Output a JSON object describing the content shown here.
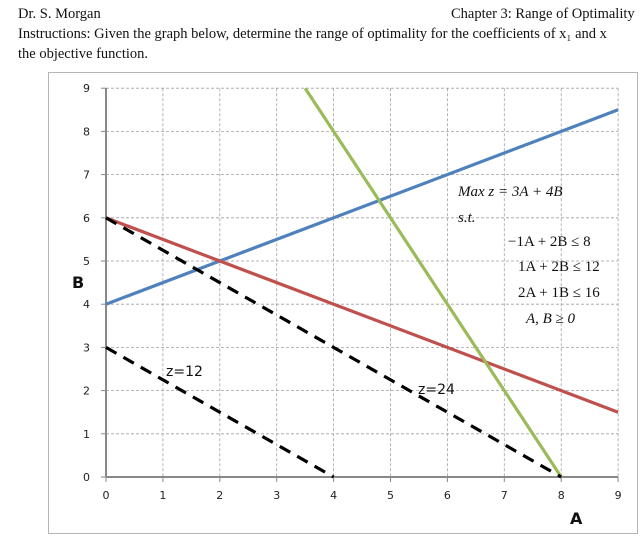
{
  "header": {
    "author": "Dr. S. Morgan",
    "chapter": "Chapter 3: Range of Optimality",
    "instructions_line1": "Instructions: Given the graph below, determine the range of optimality for the coefficients of x₁ and x",
    "instructions_line2": "the objective function."
  },
  "model": {
    "objective": "Max z = 3A + 4B",
    "st": "s.t.",
    "constraints": [
      "−1A + 2B ≤ 8",
      "1A + 2B ≤ 12",
      "2A + 1B ≤ 16",
      "A, B ≥ 0"
    ]
  },
  "labels": {
    "z12": "z=12",
    "z24": "z=24",
    "xaxis": "A",
    "yaxis": "B"
  },
  "chart_data": {
    "type": "line",
    "title": "",
    "xlabel": "A",
    "ylabel": "B",
    "xlim": [
      0,
      9
    ],
    "ylim": [
      0,
      9
    ],
    "xticks": [
      0,
      1,
      2,
      3,
      4,
      5,
      6,
      7,
      8,
      9
    ],
    "yticks": [
      0,
      1,
      2,
      3,
      4,
      5,
      6,
      7,
      8,
      9
    ],
    "grid": true,
    "series": [
      {
        "name": "-1A + 2B = 8",
        "color": "#4F81BD",
        "style": "solid",
        "points": [
          [
            0,
            4
          ],
          [
            9,
            8.5
          ]
        ]
      },
      {
        "name": "1A + 2B = 12",
        "color": "#C0504D",
        "style": "solid",
        "points": [
          [
            0,
            6
          ],
          [
            9,
            1.5
          ]
        ]
      },
      {
        "name": "2A + 1B = 16",
        "color": "#9BBB59",
        "style": "solid",
        "points": [
          [
            3.5,
            9
          ],
          [
            8,
            0
          ]
        ]
      },
      {
        "name": "z=12",
        "color": "#000000",
        "style": "dashed",
        "points": [
          [
            0,
            3
          ],
          [
            4,
            0
          ]
        ]
      },
      {
        "name": "z=24",
        "color": "#000000",
        "style": "dashed",
        "points": [
          [
            0,
            6
          ],
          [
            8,
            0
          ]
        ]
      }
    ],
    "annotations": [
      {
        "text": "z=12",
        "x": 1.1,
        "y": 2.3
      },
      {
        "text": "z=24",
        "x": 5.2,
        "y": 1.8
      },
      {
        "text": "Max z = 3A + 4B; s.t. -1A+2B<=8; 1A+2B<=12; 2A+1B<=16; A,B>=0",
        "x": 6,
        "y": 7
      }
    ]
  }
}
